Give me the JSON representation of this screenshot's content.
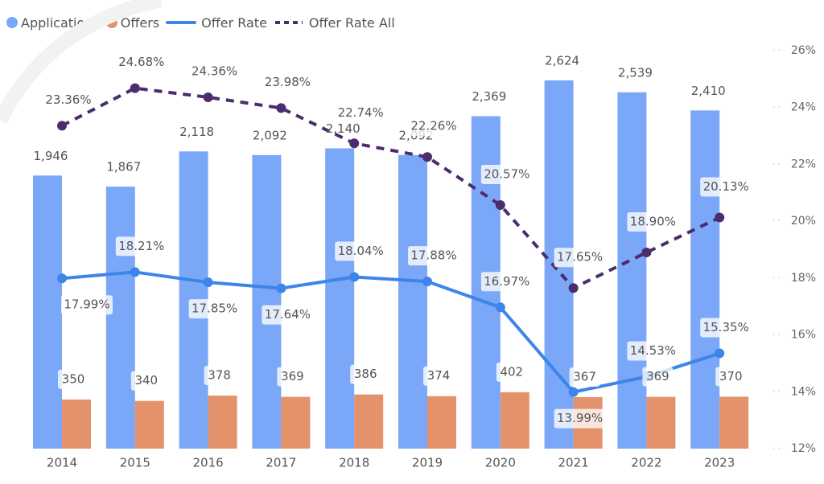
{
  "chart_data": {
    "type": "bar",
    "categories": [
      "2014",
      "2015",
      "2016",
      "2017",
      "2018",
      "2019",
      "2020",
      "2021",
      "2022",
      "2023"
    ],
    "series": [
      {
        "name": "Applications",
        "kind": "bar",
        "color": "#7AA7F7",
        "values": [
          1946,
          1867,
          2118,
          2092,
          2140,
          2092,
          2369,
          2624,
          2539,
          2410
        ],
        "labels": [
          "1,946",
          "1,867",
          "2,118",
          "2,092",
          "2,140",
          "2,092",
          "2,369",
          "2,624",
          "2,539",
          "2,410"
        ]
      },
      {
        "name": "Offers",
        "kind": "bar",
        "color": "#E4926C",
        "values": [
          350,
          340,
          378,
          369,
          386,
          374,
          402,
          367,
          369,
          370
        ],
        "labels": [
          "350",
          "340",
          "378",
          "369",
          "386",
          "374",
          "402",
          "367",
          "369",
          "370"
        ]
      },
      {
        "name": "Offer Rate",
        "kind": "line",
        "axis": "right",
        "color": "#3D85E8",
        "values": [
          17.99,
          18.21,
          17.85,
          17.64,
          18.04,
          17.88,
          16.97,
          13.99,
          14.53,
          15.35
        ],
        "labels": [
          "17.99%",
          "18.21%",
          "17.85%",
          "17.64%",
          "18.04%",
          "17.88%",
          "16.97%",
          "13.99%",
          "14.53%",
          "15.35%"
        ]
      },
      {
        "name": "Offer Rate All",
        "kind": "line",
        "dashed": true,
        "axis": "right",
        "color": "#4B2D6E",
        "values": [
          23.36,
          24.68,
          24.36,
          23.98,
          22.74,
          22.26,
          20.57,
          17.65,
          18.9,
          20.13
        ],
        "labels": [
          "23.36%",
          "24.68%",
          "24.36%",
          "23.98%",
          "22.74%",
          "22.26%",
          "20.57%",
          "17.65%",
          "18.90%",
          "20.13%"
        ]
      }
    ],
    "y_left_range": [
      0,
      2624
    ],
    "y_right": {
      "range": [
        12,
        26
      ],
      "ticks": [
        12,
        14,
        16,
        18,
        20,
        22,
        24,
        26
      ],
      "tick_labels": [
        "12%",
        "14%",
        "16%",
        "18%",
        "20%",
        "22%",
        "24%",
        "26%"
      ]
    },
    "legend_position": "top-left",
    "grid": false
  }
}
